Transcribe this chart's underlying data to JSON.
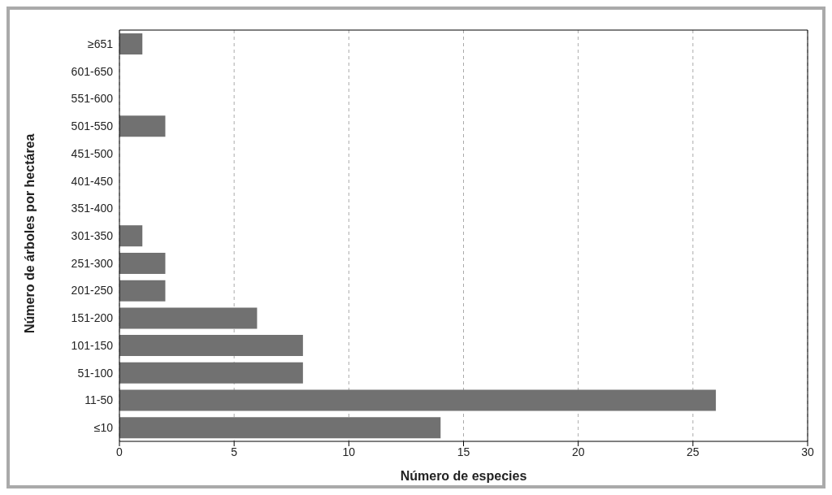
{
  "chart_data": {
    "type": "bar",
    "orientation": "horizontal",
    "xlabel": "Número de especies",
    "ylabel": "Número de árboles por hectárea",
    "categories": [
      "≥651",
      "601-650",
      "551-600",
      "501-550",
      "451-500",
      "401-450",
      "351-400",
      "301-350",
      "251-300",
      "201-250",
      "151-200",
      "101-150",
      "51-100",
      "11-50",
      "≤10"
    ],
    "values": [
      1,
      0,
      0,
      2,
      0,
      0,
      0,
      1,
      2,
      2,
      6,
      8,
      8,
      26,
      14
    ],
    "color": "#717171",
    "xlim": [
      0,
      30
    ],
    "xticks": [
      0,
      5,
      10,
      15,
      20,
      25,
      30
    ],
    "grid": "x"
  }
}
